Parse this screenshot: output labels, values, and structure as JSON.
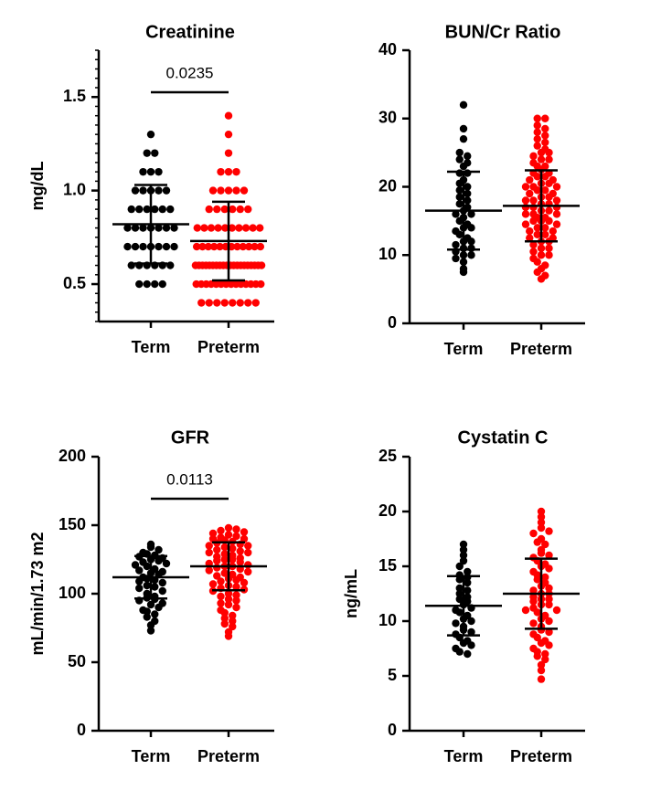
{
  "chart_data": [
    {
      "type": "dotplot",
      "title": "Creatinine",
      "y_label": "mg/dL",
      "annotation": "0.0235",
      "categories": [
        "Term",
        "Preterm"
      ],
      "ylim": [
        0.3,
        1.75
      ],
      "yticks": [
        0.5,
        {
          "value": 1,
          "label": "1.0"
        },
        1.5
      ],
      "minor_ticks": true,
      "groups": [
        {
          "color": "#000000",
          "mean": 0.82,
          "sd": 0.21,
          "values": [
            1.3,
            1.2,
            1.2,
            1.1,
            1.1,
            1.1,
            1.0,
            1.0,
            1.0,
            1.0,
            1.0,
            0.9,
            0.9,
            0.9,
            0.9,
            0.9,
            0.9,
            0.8,
            0.8,
            0.8,
            0.8,
            0.8,
            0.8,
            0.8,
            0.7,
            0.7,
            0.7,
            0.7,
            0.7,
            0.7,
            0.7,
            0.6,
            0.6,
            0.6,
            0.6,
            0.6,
            0.6,
            0.5,
            0.5,
            0.5,
            0.5
          ]
        },
        {
          "color": "#ff0000",
          "mean": 0.73,
          "sd": 0.21,
          "values": [
            1.4,
            1.3,
            1.2,
            1.1,
            1.1,
            1.1,
            1.0,
            1.0,
            1.0,
            1.0,
            1.0,
            0.9,
            0.9,
            0.9,
            0.9,
            0.9,
            0.9,
            0.8,
            0.8,
            0.8,
            0.8,
            0.8,
            0.8,
            0.8,
            0.8,
            0.8,
            0.8,
            0.7,
            0.7,
            0.7,
            0.7,
            0.7,
            0.7,
            0.7,
            0.7,
            0.7,
            0.7,
            0.7,
            0.7,
            0.6,
            0.6,
            0.6,
            0.6,
            0.6,
            0.6,
            0.6,
            0.6,
            0.6,
            0.6,
            0.6,
            0.6,
            0.6,
            0.6,
            0.6,
            0.6,
            0.6,
            0.6,
            0.6,
            0.6,
            0.5,
            0.5,
            0.5,
            0.5,
            0.5,
            0.5,
            0.5,
            0.5,
            0.5,
            0.5,
            0.5,
            0.5,
            0.5,
            0.5,
            0.4,
            0.4,
            0.4,
            0.4,
            0.4,
            0.4,
            0.4,
            0.4
          ]
        }
      ]
    },
    {
      "type": "dotplot",
      "title": "BUN/Cr Ratio",
      "categories": [
        "Term",
        "Preterm"
      ],
      "ylim": [
        0,
        40
      ],
      "yticks": [
        0,
        10,
        20,
        30,
        40
      ],
      "groups": [
        {
          "color": "#000000",
          "mean": 16.5,
          "sd": 5.7,
          "values": [
            32,
            28.5,
            27,
            25,
            24.5,
            24,
            23.5,
            23,
            22,
            22,
            21,
            20.5,
            20,
            19.5,
            19,
            18.5,
            18,
            17.5,
            17,
            16.5,
            16,
            16,
            15.5,
            15,
            14.5,
            14,
            14,
            13.5,
            13,
            12.5,
            12,
            12,
            11.5,
            11,
            11,
            10.5,
            10,
            10,
            9.5,
            9,
            8,
            7.5
          ]
        },
        {
          "color": "#ff0000",
          "mean": 17.2,
          "sd": 5.2,
          "values": [
            30,
            30,
            29,
            28.5,
            28,
            27.5,
            27,
            26.5,
            26,
            25.5,
            25,
            25,
            24.5,
            24,
            24,
            23.5,
            23,
            23,
            22.5,
            22,
            22,
            21.5,
            21.5,
            21,
            21,
            20.5,
            20.5,
            20,
            20,
            20,
            19.5,
            19.5,
            19,
            19,
            18.5,
            18.5,
            18,
            18,
            18,
            17.5,
            17.5,
            17,
            17,
            17,
            16.5,
            16.5,
            16,
            16,
            16,
            15.5,
            15.5,
            15,
            15,
            15,
            14.5,
            14.5,
            14,
            14,
            13.5,
            13.5,
            13,
            13,
            12.5,
            12.5,
            12,
            12,
            11.5,
            11,
            11,
            10.5,
            10,
            10,
            9.5,
            9,
            8.5,
            8,
            7.5,
            7,
            6.5
          ]
        }
      ]
    },
    {
      "type": "dotplot",
      "title": "GFR",
      "y_label": "mL/min/1.73 m2",
      "annotation": "0.0113",
      "categories": [
        "Term",
        "Preterm"
      ],
      "ylim": [
        0,
        200
      ],
      "yticks": [
        0,
        50,
        100,
        150,
        200
      ],
      "groups": [
        {
          "color": "#000000",
          "mean": 112,
          "sd": 15.5,
          "values": [
            136,
            134,
            132,
            130,
            129,
            128,
            127,
            126,
            125,
            124,
            123,
            122,
            121,
            120,
            118,
            117,
            116,
            115,
            114,
            112,
            111,
            110,
            109,
            108,
            106,
            105,
            104,
            102,
            100,
            98,
            97,
            96,
            95,
            93,
            92,
            90,
            88,
            87,
            85,
            83,
            80,
            77,
            73
          ]
        },
        {
          "color": "#ff0000",
          "mean": 120,
          "sd": 17.5,
          "values": [
            148,
            147,
            146,
            145,
            144,
            143,
            142,
            141,
            140,
            140,
            139,
            138,
            137,
            136,
            135,
            135,
            134,
            133,
            132,
            131,
            130,
            130,
            129,
            128,
            127,
            126,
            125,
            125,
            124,
            123,
            122,
            121,
            120,
            120,
            119,
            118,
            117,
            116,
            115,
            114,
            113,
            112,
            111,
            110,
            109,
            108,
            107,
            106,
            105,
            104,
            103,
            102,
            100,
            99,
            98,
            96,
            95,
            93,
            92,
            90,
            88,
            86,
            84,
            82,
            80,
            78,
            76,
            72,
            69
          ]
        }
      ]
    },
    {
      "type": "dotplot",
      "title": "Cystatin C",
      "y_label": "ng/mL",
      "categories": [
        "Term",
        "Preterm"
      ],
      "ylim": [
        0,
        25
      ],
      "yticks": [
        0,
        5,
        10,
        15,
        20,
        25
      ],
      "groups": [
        {
          "color": "#000000",
          "mean": 11.4,
          "sd": 2.7,
          "values": [
            17,
            16.5,
            16,
            15.5,
            15,
            14.5,
            14.2,
            14,
            13.8,
            13.5,
            13,
            12.8,
            12.5,
            12.2,
            12,
            11.8,
            11.5,
            11.2,
            11,
            10.8,
            10.5,
            10.2,
            10,
            9.8,
            9.5,
            9.2,
            9,
            8.8,
            8.5,
            8.2,
            8,
            7.8,
            7.5,
            7.2,
            7
          ]
        },
        {
          "color": "#ff0000",
          "mean": 12.5,
          "sd": 3.2,
          "values": [
            20,
            19.5,
            19,
            18.5,
            18.2,
            18,
            17.5,
            17.2,
            17,
            16.5,
            16.2,
            16,
            15.8,
            15.5,
            15.2,
            15,
            14.8,
            14.5,
            14.2,
            14,
            13.8,
            13.5,
            13.2,
            13,
            12.8,
            12.5,
            12.5,
            12.2,
            12,
            12,
            11.8,
            11.5,
            11.5,
            11.2,
            11,
            11,
            10.8,
            10.5,
            10.2,
            10,
            9.8,
            9.5,
            9.2,
            9,
            8.8,
            8.5,
            8.2,
            8,
            7.8,
            7.5,
            7.2,
            7,
            6.8,
            6.5,
            6,
            5.5,
            4.7
          ]
        }
      ]
    }
  ]
}
